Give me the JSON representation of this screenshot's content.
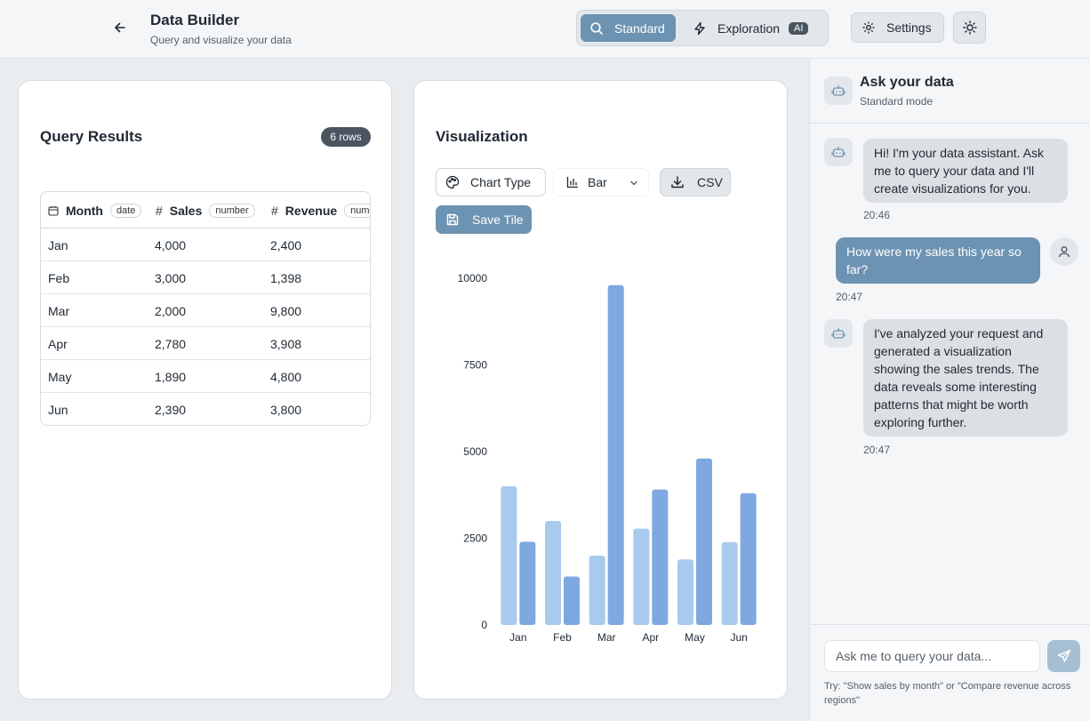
{
  "header": {
    "title": "Data Builder",
    "subtitle": "Query and visualize your data",
    "modes": {
      "standard_label": "Standard",
      "exploration_label": "Exploration",
      "exploration_badge": "AI"
    },
    "settings_label": "Settings"
  },
  "query": {
    "title": "Query Results",
    "rows_badge": "6 rows",
    "columns": [
      {
        "label": "Month",
        "type": "date"
      },
      {
        "label": "Sales",
        "type": "number"
      },
      {
        "label": "Revenue",
        "type": "number"
      }
    ],
    "rows": [
      {
        "month": "Jan",
        "sales": "4,000",
        "revenue": "2,400"
      },
      {
        "month": "Feb",
        "sales": "3,000",
        "revenue": "1,398"
      },
      {
        "month": "Mar",
        "sales": "2,000",
        "revenue": "9,800"
      },
      {
        "month": "Apr",
        "sales": "2,780",
        "revenue": "3,908"
      },
      {
        "month": "May",
        "sales": "1,890",
        "revenue": "4,800"
      },
      {
        "month": "Jun",
        "sales": "2,390",
        "revenue": "3,800"
      }
    ]
  },
  "viz": {
    "title": "Visualization",
    "chart_type_label": "Chart Type",
    "chart_select_value": "Bar",
    "csv_label": "CSV",
    "save_label": "Save Tile"
  },
  "chart_data": {
    "type": "bar",
    "categories": [
      "Jan",
      "Feb",
      "Mar",
      "Apr",
      "May",
      "Jun"
    ],
    "series": [
      {
        "name": "Sales",
        "values": [
          4000,
          3000,
          2000,
          2780,
          1890,
          2390
        ],
        "color": "#a9c9ef"
      },
      {
        "name": "Revenue",
        "values": [
          2400,
          1398,
          9800,
          3908,
          4800,
          3800
        ],
        "color": "#7ea8e0"
      }
    ],
    "yticks": [
      0,
      2500,
      5000,
      7500,
      10000
    ],
    "ylim": [
      0,
      10000
    ],
    "title": "",
    "xlabel": "",
    "ylabel": ""
  },
  "chat": {
    "title": "Ask your data",
    "subtitle": "Standard mode",
    "messages": [
      {
        "role": "bot",
        "text": "Hi! I'm your data assistant. Ask me to query your data and I'll create visualizations for you.",
        "time": "20:46"
      },
      {
        "role": "user",
        "text": "How were my sales this year so far?",
        "time": "20:47"
      },
      {
        "role": "bot",
        "text": "I've analyzed your request and generated a visualization showing the sales trends. The data reveals some interesting patterns that might be worth exploring further.",
        "time": "20:47"
      }
    ],
    "input_placeholder": "Ask me to query your data...",
    "hint": "Try: \"Show sales by month\" or \"Compare revenue across regions\""
  },
  "colors": {
    "accent": "#6d93b2",
    "badge_dark": "#4a5560"
  }
}
